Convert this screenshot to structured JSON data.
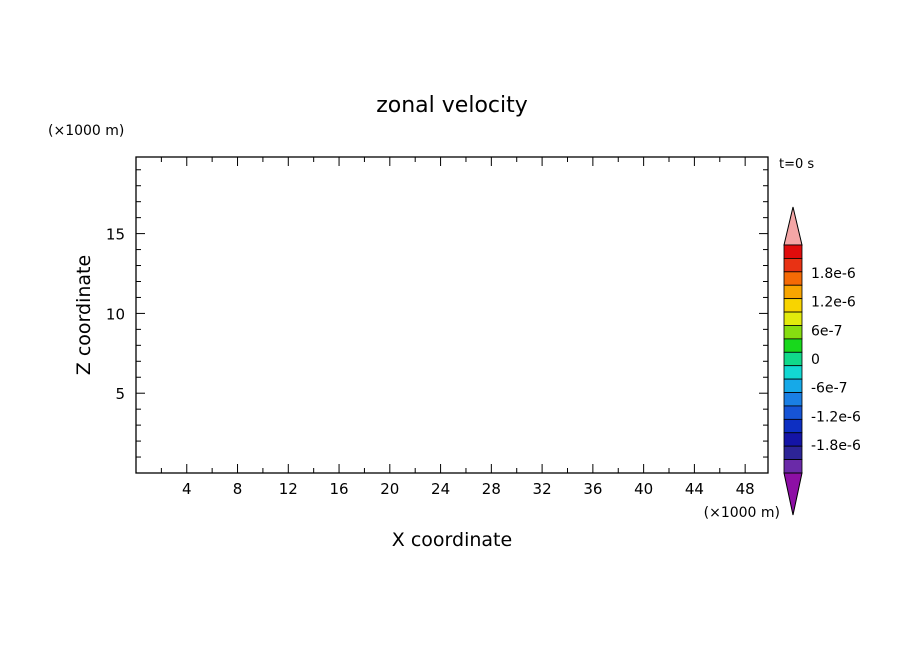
{
  "chart_data": {
    "type": "heatmap",
    "title": "zonal velocity",
    "xlabel": "X coordinate",
    "ylabel": "Z coordinate",
    "x_unit_label": "(×1000 m)",
    "y_unit_label": "(×1000 m)",
    "time_label": "t=0 s",
    "xlim": [
      0,
      49.8
    ],
    "ylim": [
      0,
      19.8
    ],
    "x_ticks": [
      4,
      8,
      12,
      16,
      20,
      24,
      28,
      32,
      36,
      40,
      44,
      48
    ],
    "x_tick_labels": [
      "4",
      "8",
      "12",
      "16",
      "20",
      "24",
      "28",
      "32",
      "36",
      "40",
      "44",
      "48"
    ],
    "y_ticks": [
      5,
      10,
      15
    ],
    "y_tick_labels": [
      "5",
      "10",
      "15"
    ],
    "data": "uniform field (no contours)",
    "colorbar": {
      "levels": [
        -2.1e-06,
        -1.8e-06,
        -1.5e-06,
        -1.2e-06,
        -9e-07,
        -6e-07,
        -3e-07,
        0,
        3e-07,
        6e-07,
        9e-07,
        1.2e-06,
        1.5e-06,
        1.8e-06,
        2.1e-06
      ],
      "colors": [
        "#6a2aa8",
        "#2d2497",
        "#1414a6",
        "#0d2fc2",
        "#1654d6",
        "#1a7fe4",
        "#16a9e8",
        "#12d8d2",
        "#10d98a",
        "#18d81c",
        "#86dd10",
        "#e2ea0c",
        "#f8d400",
        "#f8a500",
        "#f56a05",
        "#e83214",
        "#e00c0c"
      ],
      "under_color": "#8d0fa5",
      "over_color": "#f4a6a6",
      "tick_values": [
        1.8e-06,
        1.2e-06,
        6e-07,
        0,
        -6e-07,
        -1.2e-06,
        -1.8e-06
      ],
      "tick_labels": [
        "1.8e-6",
        "1.2e-6",
        "6e-7",
        "0",
        "-6e-7",
        "-1.2e-6",
        "-1.8e-6"
      ]
    }
  }
}
